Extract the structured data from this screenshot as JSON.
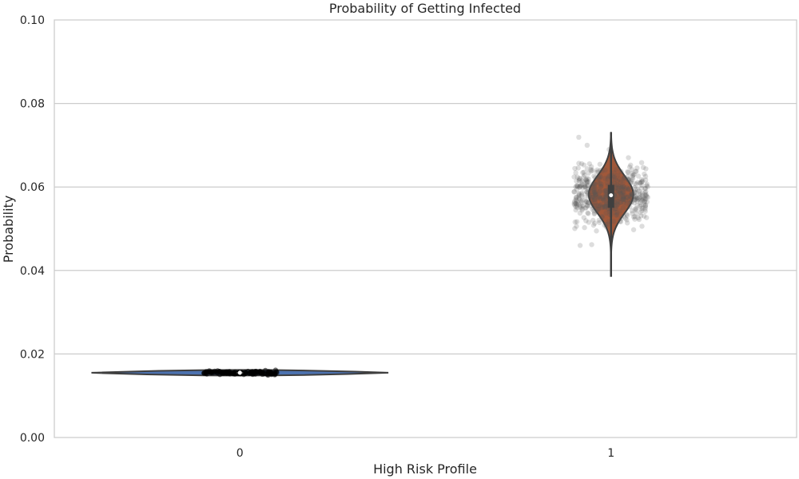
{
  "chart_data": {
    "type": "violin",
    "title": "Probability of Getting Infected",
    "xlabel": "High Risk Profile",
    "ylabel": "Probability",
    "ylim": [
      0.0,
      0.1
    ],
    "yticks": [
      "0.00",
      "0.02",
      "0.04",
      "0.06",
      "0.08",
      "0.10"
    ],
    "categories": [
      "0",
      "1"
    ],
    "grid": true,
    "groups": [
      {
        "category": "0",
        "color": "#4c72b0",
        "min": 0.0149,
        "q1": 0.0153,
        "median": 0.0155,
        "q3": 0.0157,
        "max": 0.0163,
        "density_center": 0.0155,
        "density_spread": 0.0006
      },
      {
        "category": "1",
        "color": "#a0583a",
        "min": 0.0385,
        "q1": 0.055,
        "median": 0.058,
        "q3": 0.0605,
        "max": 0.073,
        "density_center": 0.0582,
        "density_spread": 0.0045
      }
    ]
  }
}
